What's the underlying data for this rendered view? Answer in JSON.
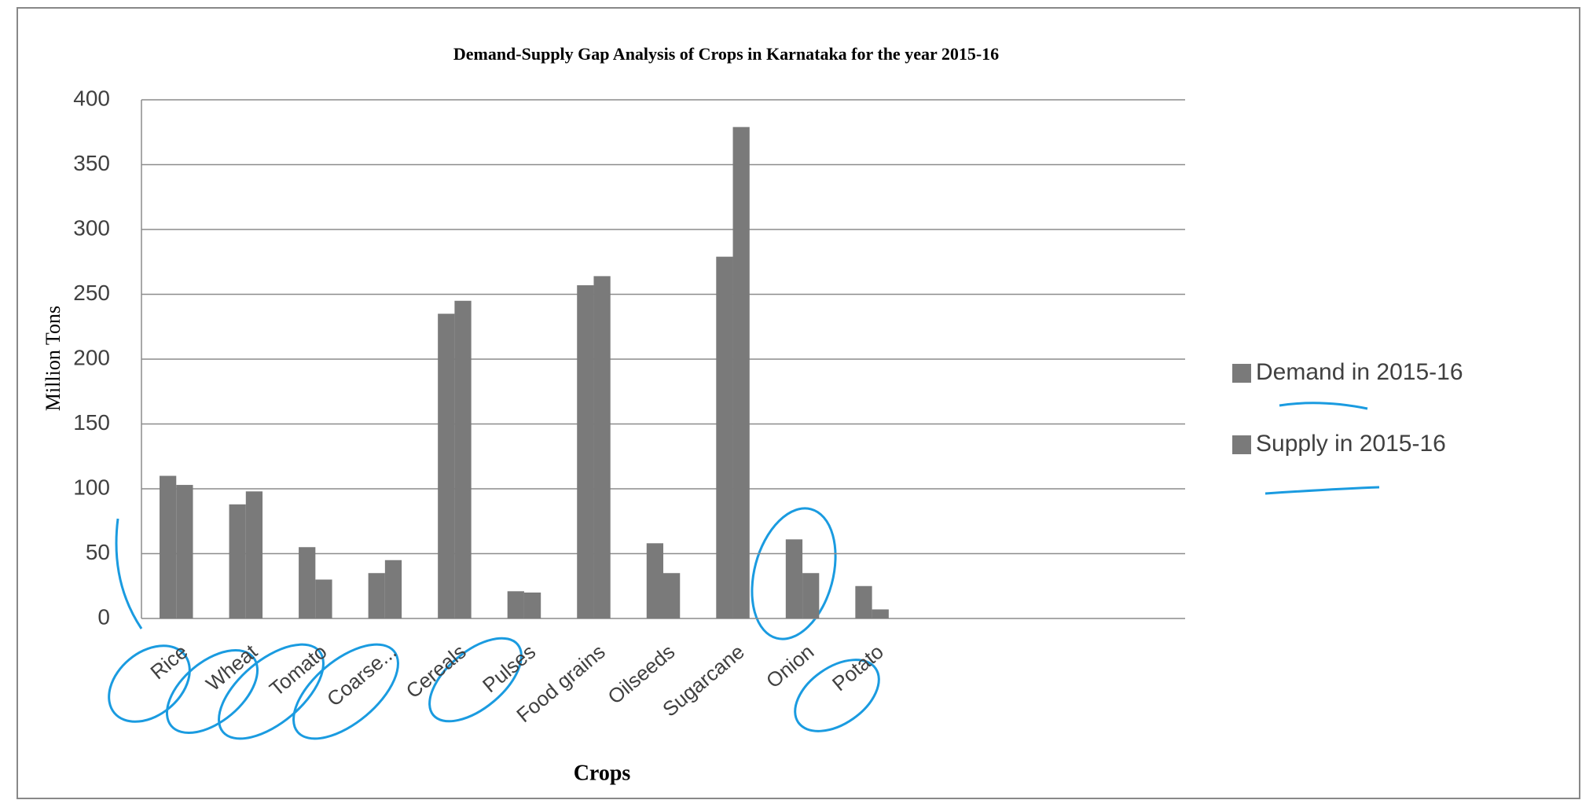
{
  "chart_data": {
    "type": "bar",
    "title": "Demand-Supply Gap Analysis of Crops in Karnataka for the year 2015-16",
    "x_label": "Crops",
    "y_label": "Million Tons",
    "categories": [
      "Rice",
      "Wheat",
      "Tomato",
      "Coarse...",
      "Cereals",
      "Pulses",
      "Food grains",
      "Oilseeds",
      "Sugarcane",
      "Onion",
      "Potato",
      null,
      null,
      null,
      null
    ],
    "series": [
      {
        "name": "Demand in 2015-16",
        "color": "#7a7a7a",
        "values": [
          110,
          88,
          55,
          35,
          235,
          21,
          257,
          58,
          279,
          61,
          25,
          null,
          null,
          null,
          null
        ]
      },
      {
        "name": "Supply in 2015-16",
        "color": "#7a7a7a",
        "values": [
          103,
          98,
          30,
          45,
          245,
          20,
          264,
          35,
          379,
          35,
          7,
          null,
          null,
          null,
          null
        ]
      }
    ],
    "ylim": [
      0,
      400
    ],
    "yticks": [
      0,
      50,
      100,
      150,
      200,
      250,
      300,
      350,
      400
    ],
    "grid": true,
    "legend": "right"
  }
}
